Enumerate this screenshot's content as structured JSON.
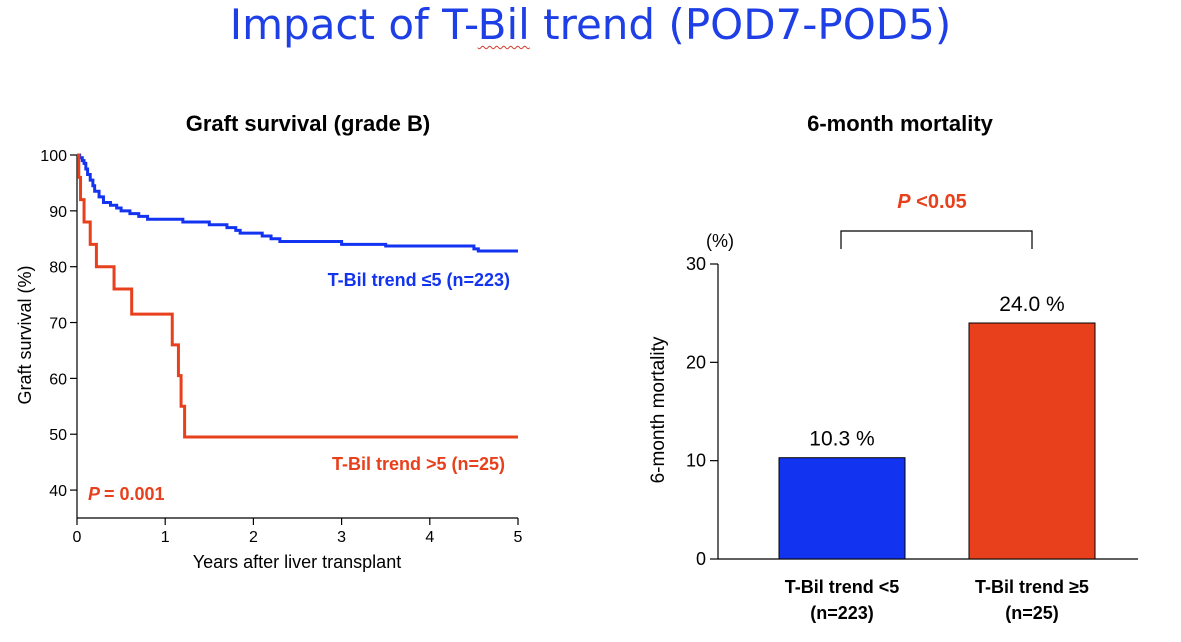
{
  "slide": {
    "title_pre": "Impact of T-",
    "title_underlined": "Bil",
    "title_post": " trend (POD7-POD5)"
  },
  "chart_data": [
    {
      "type": "line",
      "subtype": "kaplan-meier",
      "title": "Graft survival (grade B)",
      "xlabel": "Years after liver transplant",
      "ylabel": "Graft survival (%)",
      "xlim": [
        0,
        5
      ],
      "ylim": [
        35,
        100
      ],
      "x_ticks": [
        0,
        1,
        2,
        3,
        4,
        5
      ],
      "y_ticks": [
        40,
        50,
        60,
        70,
        80,
        90,
        100
      ],
      "pvalue": {
        "prefix": "P",
        "value": "= 0.001",
        "color": "#e8401c"
      },
      "series": [
        {
          "name": "T-Bil trend ≤5 (n=223)",
          "color": "#1233f0",
          "steps": [
            [
              0,
              100
            ],
            [
              0.03,
              99.5
            ],
            [
              0.06,
              99
            ],
            [
              0.08,
              98.5
            ],
            [
              0.1,
              97.5
            ],
            [
              0.12,
              96.5
            ],
            [
              0.15,
              95.5
            ],
            [
              0.18,
              94.5
            ],
            [
              0.2,
              93.5
            ],
            [
              0.25,
              92.5
            ],
            [
              0.3,
              91.5
            ],
            [
              0.38,
              91
            ],
            [
              0.45,
              90.5
            ],
            [
              0.5,
              90
            ],
            [
              0.6,
              89.5
            ],
            [
              0.7,
              89
            ],
            [
              0.8,
              88.5
            ],
            [
              1.2,
              88
            ],
            [
              1.5,
              87.5
            ],
            [
              1.7,
              87
            ],
            [
              1.8,
              86.5
            ],
            [
              1.85,
              86
            ],
            [
              2.1,
              85.5
            ],
            [
              2.2,
              85
            ],
            [
              2.3,
              84.5
            ],
            [
              3.0,
              84
            ],
            [
              3.5,
              83.7
            ],
            [
              4.5,
              83.2
            ],
            [
              4.55,
              82.8
            ],
            [
              5.0,
              82.8
            ]
          ]
        },
        {
          "name": "T-Bil trend >5 (n=25)",
          "color": "#e8401c",
          "steps": [
            [
              0,
              100
            ],
            [
              0.02,
              96
            ],
            [
              0.04,
              92
            ],
            [
              0.08,
              88
            ],
            [
              0.15,
              84
            ],
            [
              0.22,
              80
            ],
            [
              0.42,
              76
            ],
            [
              0.62,
              71.5
            ],
            [
              1.08,
              66
            ],
            [
              1.15,
              60.5
            ],
            [
              1.18,
              55
            ],
            [
              1.22,
              49.5
            ],
            [
              5.0,
              49.5
            ]
          ]
        }
      ]
    },
    {
      "type": "bar",
      "title": "6-month mortality",
      "ylabel": "6-month mortality",
      "yunit": "(%)",
      "ylim": [
        0,
        30
      ],
      "y_ticks": [
        0,
        10,
        20,
        30
      ],
      "categories": [
        {
          "line1": "T-Bil trend <5",
          "line2": "(n=223)"
        },
        {
          "line1": "T-Bil trend ≥5",
          "line2": "(n=25)"
        }
      ],
      "values": [
        10.3,
        24.0
      ],
      "value_labels": [
        "10.3 %",
        "24.0 %"
      ],
      "bar_colors": [
        "#1233f0",
        "#e8401c"
      ],
      "significance": {
        "prefix": "P",
        "value": " <0.05",
        "color": "#e8401c"
      }
    }
  ]
}
